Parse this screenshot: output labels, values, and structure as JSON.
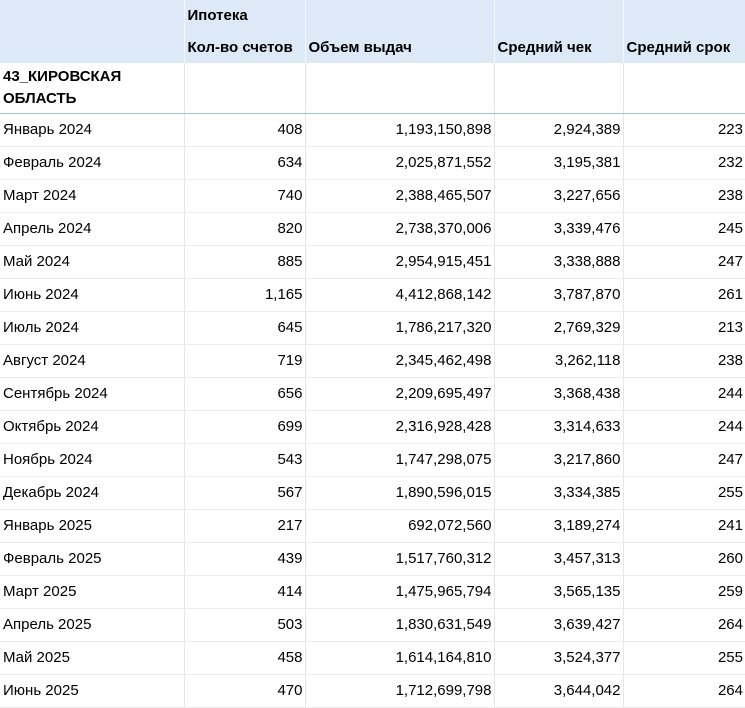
{
  "header": {
    "group_label": "Ипотека",
    "columns": [
      "Кол-во счетов",
      "Объем выдач",
      "Средний чек",
      "Средний срок"
    ]
  },
  "region": {
    "name": "43_КИРОВСКАЯ ОБЛАСТЬ"
  },
  "rows": [
    {
      "month": "Январь 2024",
      "accounts": "408",
      "volume": "1,193,150,898",
      "avg_check": "2,924,389",
      "avg_term": "223"
    },
    {
      "month": "Февраль 2024",
      "accounts": "634",
      "volume": "2,025,871,552",
      "avg_check": "3,195,381",
      "avg_term": "232"
    },
    {
      "month": "Март 2024",
      "accounts": "740",
      "volume": "2,388,465,507",
      "avg_check": "3,227,656",
      "avg_term": "238"
    },
    {
      "month": "Апрель 2024",
      "accounts": "820",
      "volume": "2,738,370,006",
      "avg_check": "3,339,476",
      "avg_term": "245"
    },
    {
      "month": "Май 2024",
      "accounts": "885",
      "volume": "2,954,915,451",
      "avg_check": "3,338,888",
      "avg_term": "247"
    },
    {
      "month": "Июнь 2024",
      "accounts": "1,165",
      "volume": "4,412,868,142",
      "avg_check": "3,787,870",
      "avg_term": "261"
    },
    {
      "month": "Июль 2024",
      "accounts": "645",
      "volume": "1,786,217,320",
      "avg_check": "2,769,329",
      "avg_term": "213"
    },
    {
      "month": "Август 2024",
      "accounts": "719",
      "volume": "2,345,462,498",
      "avg_check": "3,262,118",
      "avg_term": "238"
    },
    {
      "month": "Сентябрь 2024",
      "accounts": "656",
      "volume": "2,209,695,497",
      "avg_check": "3,368,438",
      "avg_term": "244"
    },
    {
      "month": "Октябрь 2024",
      "accounts": "699",
      "volume": "2,316,928,428",
      "avg_check": "3,314,633",
      "avg_term": "244"
    },
    {
      "month": "Ноябрь 2024",
      "accounts": "543",
      "volume": "1,747,298,075",
      "avg_check": "3,217,860",
      "avg_term": "247"
    },
    {
      "month": "Декабрь 2024",
      "accounts": "567",
      "volume": "1,890,596,015",
      "avg_check": "3,334,385",
      "avg_term": "255"
    },
    {
      "month": "Январь 2025",
      "accounts": "217",
      "volume": "692,072,560",
      "avg_check": "3,189,274",
      "avg_term": "241"
    },
    {
      "month": "Февраль 2025",
      "accounts": "439",
      "volume": "1,517,760,312",
      "avg_check": "3,457,313",
      "avg_term": "260"
    },
    {
      "month": "Март 2025",
      "accounts": "414",
      "volume": "1,475,965,794",
      "avg_check": "3,565,135",
      "avg_term": "259"
    },
    {
      "month": "Апрель 2025",
      "accounts": "503",
      "volume": "1,830,631,549",
      "avg_check": "3,639,427",
      "avg_term": "264"
    },
    {
      "month": "Май 2025",
      "accounts": "458",
      "volume": "1,614,164,810",
      "avg_check": "3,524,377",
      "avg_term": "255"
    },
    {
      "month": "Июнь 2025",
      "accounts": "470",
      "volume": "1,712,699,798",
      "avg_check": "3,644,042",
      "avg_term": "264"
    }
  ],
  "colors": {
    "header_fill": "#dde9f6",
    "region_separator": "#9dc3e6"
  }
}
